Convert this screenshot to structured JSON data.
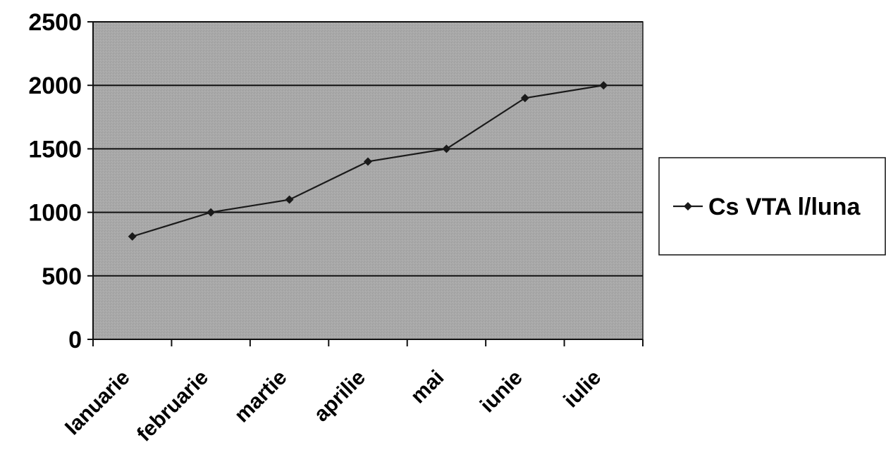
{
  "chart_data": {
    "type": "line",
    "title": "",
    "xlabel": "",
    "ylabel": "",
    "categories": [
      "Ianuarie",
      "februarie",
      "martie",
      "aprilie",
      "mai",
      "iunie",
      "iulie"
    ],
    "series": [
      {
        "name": "Cs VTA l/luna",
        "values": [
          810,
          1000,
          1100,
          1400,
          1500,
          1900,
          2000
        ],
        "color": "#1a1a1a",
        "marker": "diamond"
      }
    ],
    "ylim": [
      0,
      2500
    ],
    "yticks": [
      0,
      500,
      1000,
      1500,
      2000,
      2500
    ],
    "grid": "horizontal",
    "plot_background": "#a9a9a9",
    "legend_position": "right"
  }
}
